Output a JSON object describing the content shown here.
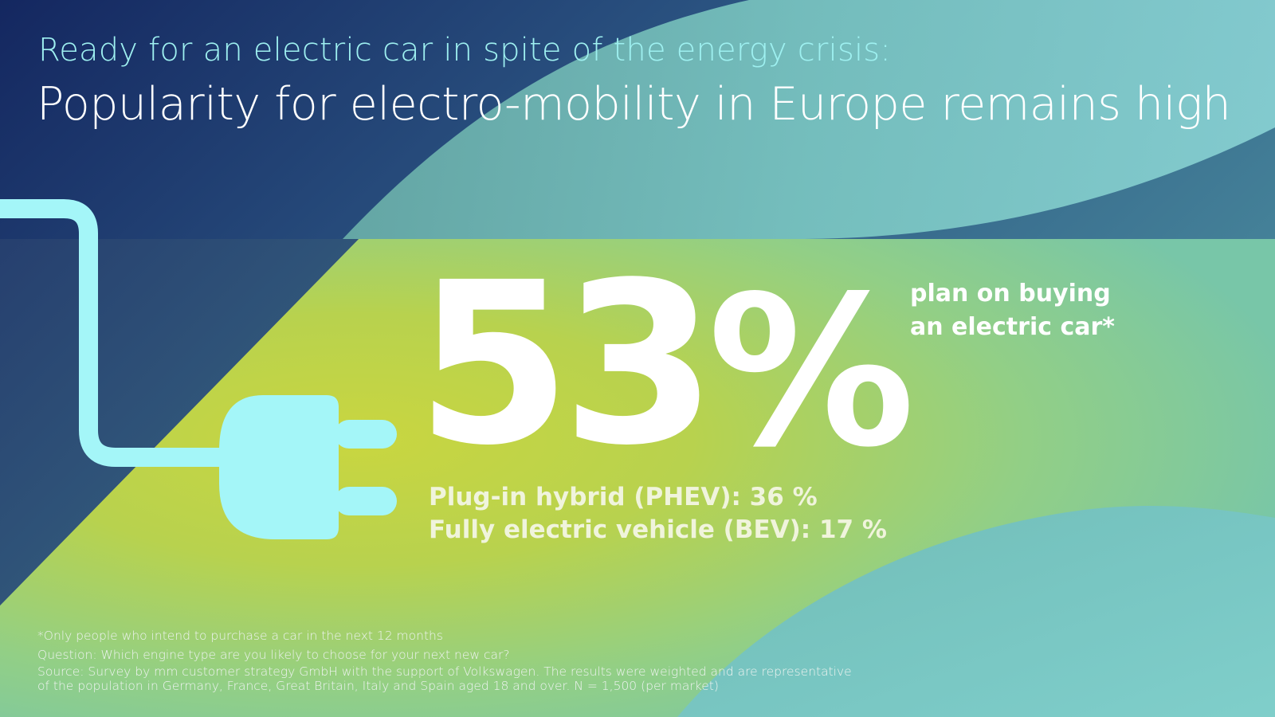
{
  "header": {
    "subtitle": "Ready for an electric car in spite of the energy crisis:",
    "headline": "Popularity for electro-mobility in Europe remains high"
  },
  "stat": {
    "value": "53",
    "unit": "%",
    "label_line1": "plan on buying",
    "label_line2": "an electric car*"
  },
  "breakdown": [
    {
      "text": "Plug-in hybrid (PHEV): 36 %"
    },
    {
      "text": "Fully electric vehicle (BEV): 17 %"
    }
  ],
  "footnotes": {
    "note": "*Only people who intend to purchase a car in the next 12 months",
    "question": "Question: Which engine type are you likely to choose for your next new car?",
    "source_line1": "Source: Survey by mm customer strategy GmbH with the support of Volkswagen. The results were weighted and are representative",
    "source_line2": "of the population in Germany, France, Great Britain, Italy and Spain aged 18 and over. N = 1,500 (per market)"
  },
  "icons": {
    "plug": "electric-plug-icon"
  },
  "colors": {
    "navy": "#1c2f63",
    "lime": "#bcd448",
    "teal": "#86d6d6",
    "cyan": "#a4f6f8"
  }
}
